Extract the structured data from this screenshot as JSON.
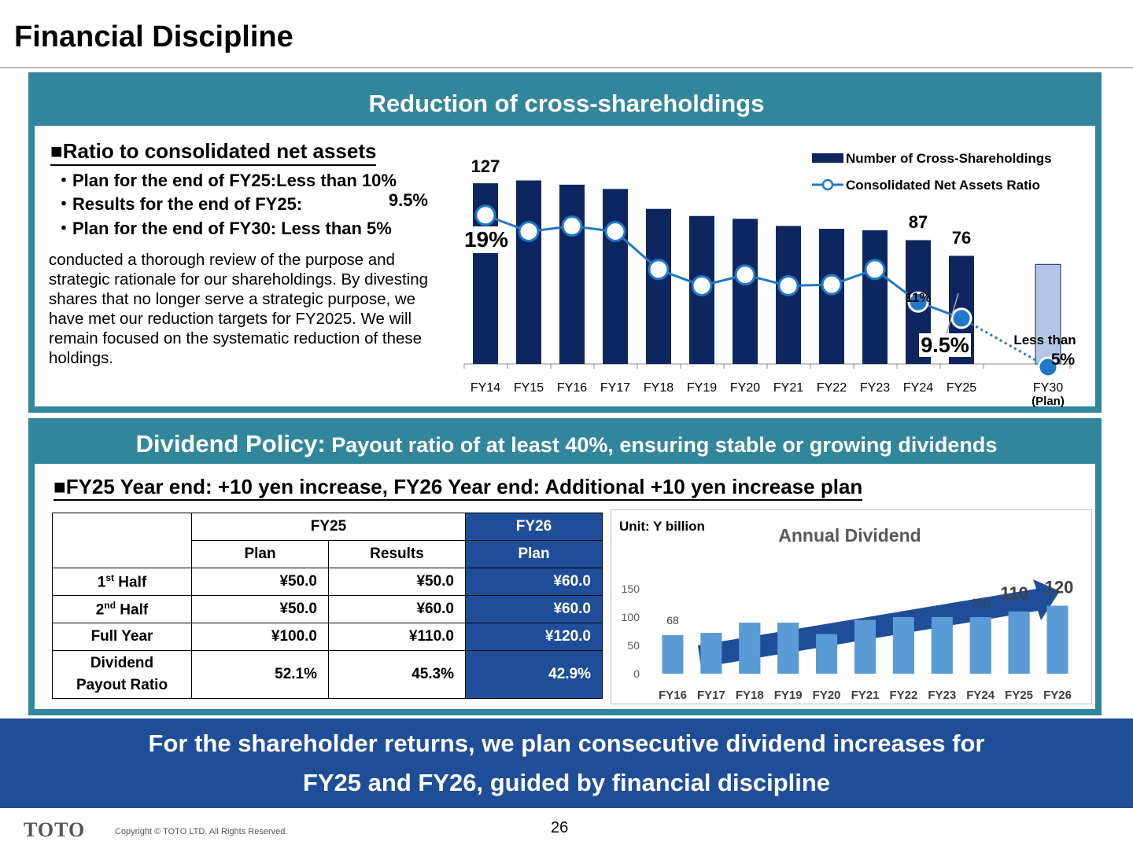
{
  "page": {
    "title": "Financial Discipline",
    "page_number": "26",
    "logo": "TOTO",
    "copyright": "Copyright © TOTO LTD. All Rights Reserved."
  },
  "cross_shareholdings": {
    "panel_title": "Reduction of cross-shareholdings",
    "heading": "■Ratio to consolidated net assets",
    "bullets": [
      {
        "label": "・Plan for the end of FY25:Less than 10%",
        "value": ""
      },
      {
        "label": "・Results for the end of FY25:",
        "value": "9.5%"
      },
      {
        "label": "・Plan for the end of FY30: Less than  5%",
        "value": ""
      }
    ],
    "body": "conducted a thorough review of the purpose and strategic rationale for our shareholdings. By divesting shares that no longer serve a strategic purpose, we have met our reduction targets for FY2025. We will remain focused on the systematic reduction of these holdings."
  },
  "dividend": {
    "panel_title_a": "Dividend Policy:",
    "panel_title_b": " Payout ratio of at least 40%, ensuring stable or growing dividends",
    "heading": "■FY25 Year end: +10 yen increase, FY26 Year end: Additional +10 yen increase plan",
    "table": {
      "fy25": "FY25",
      "fy26": "FY26",
      "plan": "Plan",
      "results": "Results",
      "rows": [
        {
          "label": "1",
          "sup": "st",
          "suffix": " Half",
          "c1": "¥50.0",
          "c2": "¥50.0",
          "c3": "¥60.0"
        },
        {
          "label": "2",
          "sup": "nd",
          "suffix": " Half",
          "c1": "¥50.0",
          "c2": "¥60.0",
          "c3": "¥60.0"
        },
        {
          "label": "Full Year",
          "sup": "",
          "suffix": "",
          "c1": "¥100.0",
          "c2": "¥110.0",
          "c3": "¥120.0"
        },
        {
          "label": "Dividend",
          "sup": "",
          "suffix": "",
          "label2": "Payout Ratio",
          "c1": "52.1%",
          "c2": "45.3%",
          "c3": "42.9%"
        }
      ]
    }
  },
  "banner": {
    "line1": "For the shareholder returns, we plan consecutive dividend increases for",
    "line2": "FY25 and FY26,  guided by financial discipline"
  },
  "chart_data": [
    {
      "type": "bar",
      "categories": [
        "FY14",
        "FY15",
        "FY16",
        "FY17",
        "FY18",
        "FY19",
        "FY20",
        "FY21",
        "FY22",
        "FY23",
        "FY24",
        "FY25",
        "FY30"
      ],
      "x_sublabels": {
        "FY30": "(Plan)"
      },
      "series": [
        {
          "name": "Number of Cross-Shareholdings",
          "type": "bar",
          "color": "#0e2660",
          "plan_color": "#b4c6e7",
          "values": [
            127,
            129,
            126,
            123,
            109,
            104,
            102,
            97,
            95,
            94,
            87,
            76,
            70
          ]
        },
        {
          "name": "Consolidated Net Assets Ratio",
          "type": "line",
          "color": "#1f78c8",
          "values": [
            19,
            17.5,
            18,
            17.5,
            14,
            12.5,
            13.5,
            12.5,
            12.6,
            14,
            11,
            9.5,
            5
          ]
        }
      ],
      "data_labels": {
        "bar_first": "127",
        "bar_fy24": "87",
        "bar_fy25": "76",
        "ratio_first": "19%",
        "ratio_fy24": "11%",
        "ratio_fy25": "9.5%",
        "ratio_fy30_a": "Less than",
        "ratio_fy30_b": "5%"
      },
      "legend_position": "top-right"
    },
    {
      "type": "bar",
      "title": "Annual Dividend",
      "unit_label": "Unit: Y billion",
      "categories": [
        "FY16",
        "FY17",
        "FY18",
        "FY19",
        "FY20",
        "FY21",
        "FY22",
        "FY23",
        "FY24",
        "FY25",
        "FY26"
      ],
      "values": [
        68,
        72,
        90,
        90,
        70,
        95,
        100,
        100,
        100,
        110,
        120
      ],
      "ylim": [
        0,
        150
      ],
      "yticks": [
        "0",
        "50",
        "100",
        "150"
      ],
      "labels": {
        "FY16": "68",
        "FY24": "100",
        "FY25": "110",
        "FY26": "120"
      },
      "bar_color": "#5b9bd5",
      "trend_arrow_color": "#1f4e99",
      "grid": false
    }
  ]
}
